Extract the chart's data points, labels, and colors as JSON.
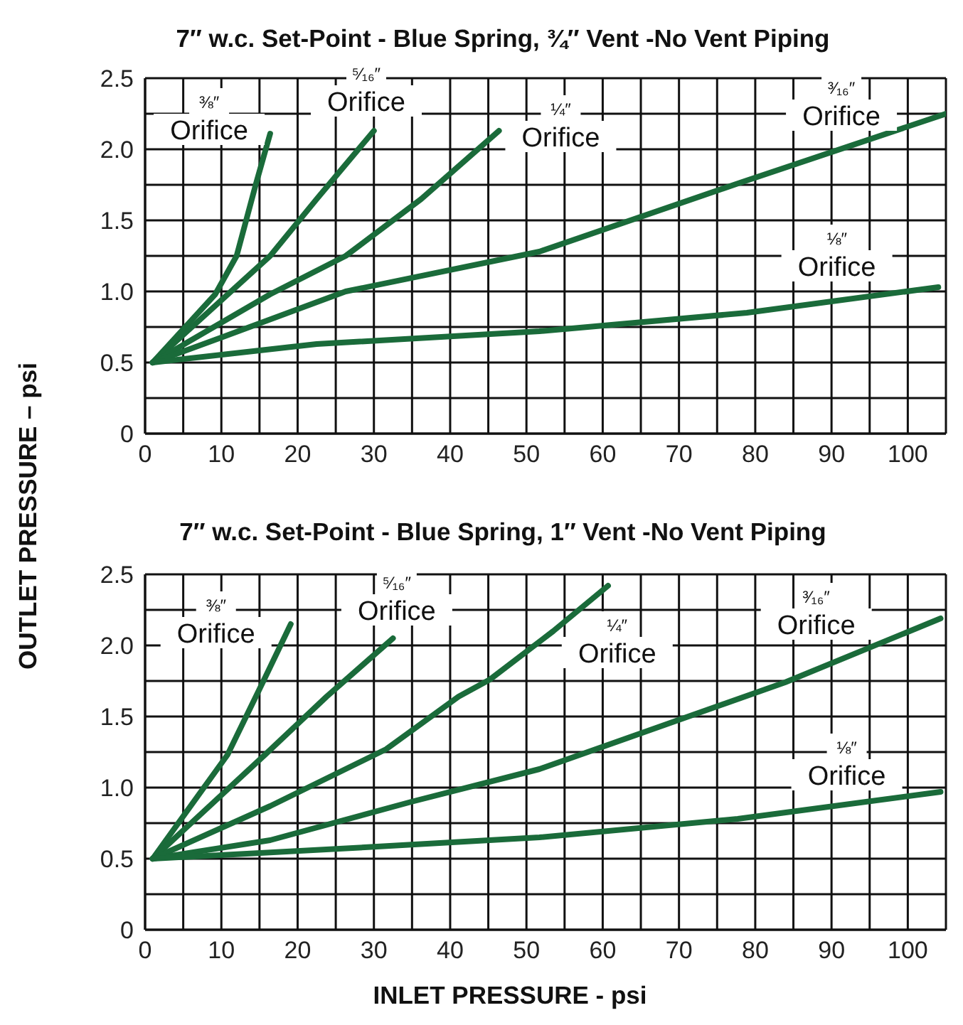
{
  "chart_data": [
    {
      "type": "line",
      "title": "7″ w.c. Set-Point - Blue Spring, ¾″ Vent -No Vent Piping",
      "ylabel": "OUTLET PRESSURE – psi",
      "grid": true,
      "legend": false,
      "marker": "none",
      "line_style": "solid",
      "xlim": [
        0,
        105
      ],
      "xticks": [
        0,
        {
          "value": 5,
          "label": null
        },
        10,
        {
          "value": 15,
          "label": null
        },
        20,
        {
          "value": 25,
          "label": null
        },
        30,
        {
          "value": 35,
          "label": null
        },
        40,
        {
          "value": 45,
          "label": null
        },
        50,
        {
          "value": 55,
          "label": null
        },
        60,
        {
          "value": 65,
          "label": null
        },
        70,
        {
          "value": 75,
          "label": null
        },
        80,
        {
          "value": 85,
          "label": null
        },
        90,
        {
          "value": 95,
          "label": null
        },
        100,
        {
          "value": 105,
          "label": null
        }
      ],
      "ylim": [
        0,
        2.5
      ],
      "yticks": [
        0,
        {
          "value": 0.25,
          "label": null
        },
        0.5,
        {
          "value": 0.75,
          "label": null
        },
        {
          "value": 1,
          "label": "1.0"
        },
        {
          "value": 1.25,
          "label": null
        },
        1.5,
        {
          "value": 1.75,
          "label": null
        },
        {
          "value": 2,
          "label": "2.0"
        },
        {
          "value": 2.25,
          "label": null
        },
        2.5
      ],
      "series": [
        {
          "name": "⅜″ Orifice",
          "color": "#1a6b3a",
          "x": [
            1,
            9.2,
            12,
            14.5,
            16.4
          ],
          "values": [
            0.5,
            0.98,
            1.25,
            1.75,
            2.11
          ]
        },
        {
          "name": "⁵⁄₁₆″ Orifice",
          "color": "#1a6b3a",
          "x": [
            1,
            16.4,
            22.5,
            30
          ],
          "values": [
            0.5,
            1.25,
            1.65,
            2.13
          ]
        },
        {
          "name": "¼″ Orifice",
          "color": "#1a6b3a",
          "x": [
            1,
            16.4,
            26.3,
            36.2,
            46.4
          ],
          "values": [
            0.5,
            0.98,
            1.25,
            1.65,
            2.13
          ]
        },
        {
          "name": "³⁄₁₆″ Orifice",
          "color": "#1a6b3a",
          "x": [
            1,
            10.2,
            26.3,
            51.7,
            78.3,
            105
          ],
          "values": [
            0.5,
            0.68,
            1,
            1.28,
            1.77,
            2.25
          ]
        },
        {
          "name": "⅛″ Orifice",
          "color": "#1a6b3a",
          "x": [
            1,
            22.5,
            51.7,
            78.9,
            104
          ],
          "values": [
            0.5,
            0.63,
            0.72,
            0.85,
            1.03
          ]
        }
      ]
    },
    {
      "type": "line",
      "title": "7″ w.c. Set-Point - Blue Spring, 1″ Vent -No Vent Piping",
      "xlabel": "INLET PRESSURE - psi",
      "grid": true,
      "legend": false,
      "marker": "none",
      "line_style": "solid",
      "xlim": [
        0,
        105
      ],
      "xticks": [
        0,
        {
          "value": 5,
          "label": null
        },
        10,
        {
          "value": 15,
          "label": null
        },
        20,
        {
          "value": 25,
          "label": null
        },
        30,
        {
          "value": 35,
          "label": null
        },
        40,
        {
          "value": 45,
          "label": null
        },
        50,
        {
          "value": 55,
          "label": null
        },
        60,
        {
          "value": 65,
          "label": null
        },
        70,
        {
          "value": 75,
          "label": null
        },
        80,
        {
          "value": 85,
          "label": null
        },
        90,
        {
          "value": 95,
          "label": null
        },
        100,
        {
          "value": 105,
          "label": null
        }
      ],
      "ylim": [
        0,
        2.5
      ],
      "yticks": [
        0,
        {
          "value": 0.25,
          "label": null
        },
        0.5,
        {
          "value": 0.75,
          "label": null
        },
        {
          "value": 1,
          "label": "1.0"
        },
        {
          "value": 1.25,
          "label": null
        },
        1.5,
        {
          "value": 1.75,
          "label": null
        },
        {
          "value": 2,
          "label": "2.0"
        },
        {
          "value": 2.25,
          "label": null
        },
        2.5
      ],
      "series": [
        {
          "name": "⅜″ Orifice",
          "color": "#1a6b3a",
          "x": [
            1,
            10.8,
            15.7,
            19.1
          ],
          "values": [
            0.5,
            1.23,
            1.77,
            2.15
          ]
        },
        {
          "name": "⁵⁄₁₆″ Orifice",
          "color": "#1a6b3a",
          "x": [
            1,
            15.7,
            23.8,
            32.5
          ],
          "values": [
            0.5,
            1.23,
            1.64,
            2.05
          ]
        },
        {
          "name": "¼″ Orifice",
          "color": "#1a6b3a",
          "x": [
            1,
            16.4,
            31.6,
            41.1,
            45.2,
            53.5,
            60.7
          ],
          "values": [
            0.5,
            0.87,
            1.27,
            1.64,
            1.76,
            2.1,
            2.42
          ]
        },
        {
          "name": "³⁄₁₆″ Orifice",
          "color": "#1a6b3a",
          "x": [
            1,
            16.4,
            34.9,
            51.7,
            83.9,
            104.3
          ],
          "values": [
            0.5,
            0.63,
            0.9,
            1.13,
            1.74,
            2.19
          ]
        },
        {
          "name": "⅛″ Orifice",
          "color": "#1a6b3a",
          "x": [
            1,
            28.8,
            51.7,
            77.7,
            104.3
          ],
          "values": [
            0.5,
            0.58,
            0.65,
            0.78,
            0.97
          ]
        }
      ]
    }
  ]
}
